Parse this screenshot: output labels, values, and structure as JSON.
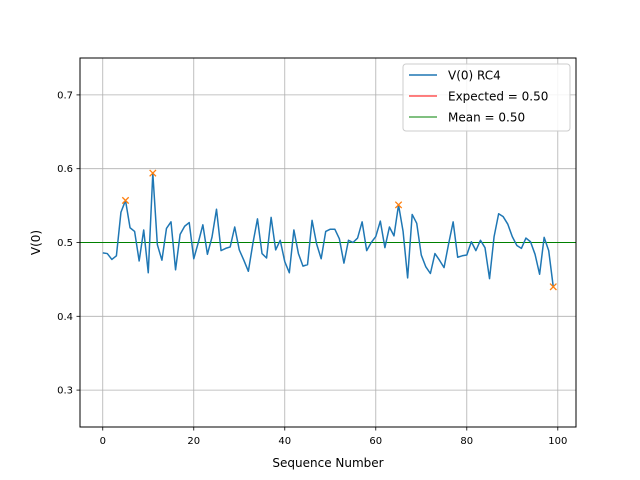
{
  "chart_data": {
    "type": "line",
    "xlabel": "Sequence Number",
    "ylabel": "V(0)",
    "xlim": [
      -5,
      104
    ],
    "ylim": [
      0.25,
      0.75
    ],
    "xticks": [
      0,
      20,
      40,
      60,
      80,
      100
    ],
    "yticks": [
      0.3,
      0.4,
      0.5,
      0.6,
      0.7
    ],
    "xtick_labels": [
      "0",
      "20",
      "40",
      "60",
      "80",
      "100"
    ],
    "ytick_labels": [
      "0.3",
      "0.4",
      "0.5",
      "0.6",
      "0.7"
    ],
    "grid": true,
    "legend_position": "top-right",
    "series": [
      {
        "name": "V(0) RC4",
        "color": "#1f77b4",
        "x": [
          0,
          1,
          2,
          3,
          4,
          5,
          6,
          7,
          8,
          9,
          10,
          11,
          12,
          13,
          14,
          15,
          16,
          17,
          18,
          19,
          20,
          21,
          22,
          23,
          24,
          25,
          26,
          27,
          28,
          29,
          30,
          31,
          32,
          33,
          34,
          35,
          36,
          37,
          38,
          39,
          40,
          41,
          42,
          43,
          44,
          45,
          46,
          47,
          48,
          49,
          50,
          51,
          52,
          53,
          54,
          55,
          56,
          57,
          58,
          59,
          60,
          61,
          62,
          63,
          64,
          65,
          66,
          67,
          68,
          69,
          70,
          71,
          72,
          73,
          74,
          75,
          76,
          77,
          78,
          79,
          80,
          81,
          82,
          83,
          84,
          85,
          86,
          87,
          88,
          89,
          90,
          91,
          92,
          93,
          94,
          95,
          96,
          97,
          98,
          99
        ],
        "y": [
          0.486,
          0.485,
          0.477,
          0.482,
          0.541,
          0.557,
          0.52,
          0.515,
          0.475,
          0.517,
          0.459,
          0.594,
          0.497,
          0.476,
          0.519,
          0.528,
          0.463,
          0.511,
          0.522,
          0.527,
          0.478,
          0.5,
          0.524,
          0.484,
          0.507,
          0.545,
          0.489,
          0.492,
          0.494,
          0.521,
          0.49,
          0.476,
          0.461,
          0.499,
          0.532,
          0.485,
          0.479,
          0.534,
          0.49,
          0.503,
          0.474,
          0.459,
          0.517,
          0.485,
          0.468,
          0.47,
          0.53,
          0.498,
          0.478,
          0.515,
          0.518,
          0.518,
          0.505,
          0.472,
          0.503,
          0.5,
          0.506,
          0.528,
          0.489,
          0.5,
          0.508,
          0.529,
          0.493,
          0.521,
          0.509,
          0.551,
          0.515,
          0.452,
          0.538,
          0.526,
          0.483,
          0.467,
          0.458,
          0.485,
          0.476,
          0.466,
          0.498,
          0.528,
          0.48,
          0.482,
          0.483,
          0.501,
          0.489,
          0.503,
          0.493,
          0.451,
          0.508,
          0.539,
          0.535,
          0.525,
          0.508,
          0.496,
          0.492,
          0.506,
          0.501,
          0.484,
          0.457,
          0.507,
          0.489,
          0.44
        ]
      },
      {
        "name": "Expected = 0.50",
        "color": "#ff0000",
        "y": 0.5
      },
      {
        "name": "Mean = 0.50",
        "color": "#008000",
        "y": 0.5
      }
    ],
    "markers": {
      "color": "#ff7f0e",
      "symbol": "x",
      "points": [
        {
          "x": 5,
          "y": 0.557
        },
        {
          "x": 11,
          "y": 0.594
        },
        {
          "x": 65,
          "y": 0.551
        },
        {
          "x": 99,
          "y": 0.44
        }
      ]
    }
  }
}
